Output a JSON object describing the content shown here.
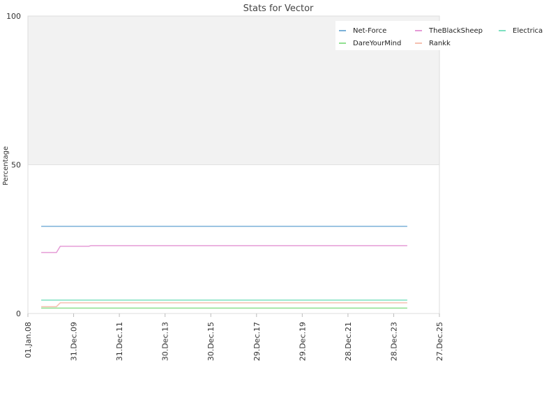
{
  "chart_data": {
    "type": "line",
    "title": "Stats for Vector",
    "ylabel": "Percentage",
    "ylim": [
      0,
      100
    ],
    "yticks": [
      "0",
      "50",
      "100"
    ],
    "xlim": [
      "2008-01-01",
      "2025-12-27"
    ],
    "xticks": [
      "01.Jan.08",
      "31.Dec.09",
      "31.Dec.11",
      "30.Dec.13",
      "30.Dec.15",
      "29.Dec.17",
      "29.Dec.19",
      "28.Dec.21",
      "28.Dec.23",
      "27.Dec.25"
    ],
    "background_bands": [
      {
        "from": 50,
        "to": 100,
        "color": "#f2f2f2"
      }
    ],
    "grid": false,
    "legend_position": "top-right",
    "series": [
      {
        "name": "Net-Force",
        "color": "#7ab0d8",
        "points": [
          [
            "2008-08-01",
            29.3
          ],
          [
            "2024-08-01",
            29.3
          ]
        ]
      },
      {
        "name": "TheBlackSheep",
        "color": "#e59ad6",
        "points": [
          [
            "2008-08-01",
            20.5
          ],
          [
            "2009-04-01",
            20.5
          ],
          [
            "2009-06-01",
            22.6
          ],
          [
            "2010-09-01",
            22.6
          ],
          [
            "2010-10-01",
            22.8
          ],
          [
            "2024-08-01",
            22.8
          ]
        ]
      },
      {
        "name": "Electrica",
        "color": "#7de0c0",
        "points": [
          [
            "2008-08-01",
            4.5
          ],
          [
            "2024-08-01",
            4.5
          ]
        ]
      },
      {
        "name": "DareYourMind",
        "color": "#90e090",
        "points": [
          [
            "2008-08-01",
            1.8
          ],
          [
            "2024-08-01",
            1.8
          ]
        ]
      },
      {
        "name": "Rankk",
        "color": "#f5c0b0",
        "points": [
          [
            "2008-08-01",
            2.3
          ],
          [
            "2009-04-01",
            2.3
          ],
          [
            "2009-06-01",
            3.6
          ],
          [
            "2024-08-01",
            3.6
          ]
        ]
      }
    ]
  }
}
